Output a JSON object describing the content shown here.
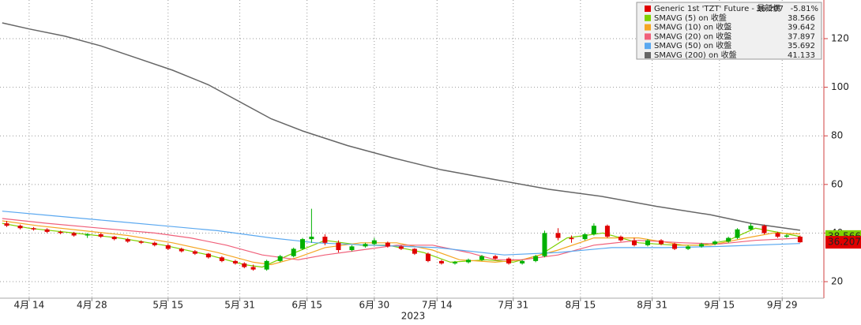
{
  "chart_data": {
    "type": "candlestick",
    "candles": {
      "name": "Generic 1st 'TZT' Future - 最新價",
      "last_value": "36.207",
      "change": "-5.81%",
      "up_color": "#00b000",
      "down_color": "#e00000",
      "x": [
        99,
        102,
        105,
        108,
        111,
        114,
        117,
        120,
        123,
        126,
        129,
        132,
        135,
        138,
        141,
        144,
        147,
        150,
        152,
        154,
        157,
        160,
        163,
        165,
        167,
        170,
        173,
        176,
        179,
        181,
        184,
        187,
        190,
        193,
        196,
        199,
        202,
        205,
        208,
        211,
        214,
        217,
        219,
        222,
        225,
        228,
        230,
        233,
        236,
        239,
        242,
        245,
        248,
        251,
        254,
        257,
        260,
        262,
        265,
        268,
        271,
        273,
        276
      ],
      "open": [
        44,
        43,
        42,
        41.5,
        40.5,
        40,
        39,
        39.5,
        38.5,
        37.5,
        36.5,
        36,
        35,
        33.5,
        32.5,
        31.5,
        30,
        28.5,
        27.5,
        26,
        25,
        28.5,
        30.5,
        33.5,
        37.5,
        38.5,
        36,
        33,
        34.5,
        35.5,
        36,
        34.5,
        33.5,
        31.5,
        28.5,
        27.5,
        28,
        29,
        30.5,
        29.5,
        27.5,
        28.5,
        30.5,
        40,
        38,
        37.5,
        39.5,
        43,
        38.5,
        37,
        35,
        37,
        35.5,
        33.5,
        34.5,
        35.5,
        36.5,
        38,
        41.5,
        43,
        40,
        38.5,
        38.5
      ],
      "high": [
        45,
        43.5,
        42.5,
        42,
        41,
        40.5,
        40,
        40,
        38.8,
        38,
        37,
        36.5,
        35.5,
        34,
        33,
        31.8,
        30.5,
        29,
        28,
        27,
        29,
        31,
        34,
        38,
        50,
        39.5,
        37,
        35,
        36,
        38,
        36.5,
        35,
        33.8,
        32,
        29,
        28.5,
        29.5,
        31,
        31,
        30,
        29,
        31,
        41,
        42,
        39,
        40,
        44,
        43.5,
        39,
        38,
        37.5,
        37.5,
        36,
        35,
        36,
        37,
        38.5,
        42,
        44,
        43.5,
        40.5,
        39.5,
        39
      ],
      "low": [
        42.5,
        41.5,
        41,
        40,
        39.5,
        38.5,
        38,
        38,
        37,
        36,
        35.5,
        34.5,
        33,
        32,
        31,
        29.5,
        28,
        27,
        25.5,
        24.5,
        24.5,
        28,
        30,
        33,
        36,
        35,
        32,
        32.5,
        34,
        35,
        34,
        33,
        31,
        28,
        27,
        27,
        27.5,
        28.5,
        29,
        27,
        27,
        28,
        30,
        37,
        36,
        37,
        39,
        38,
        36.5,
        34.5,
        34.5,
        35,
        33,
        33,
        34,
        35,
        36,
        37.5,
        41,
        39.5,
        38,
        38,
        36
      ],
      "close": [
        43,
        42,
        41.5,
        40.5,
        40,
        39,
        39.5,
        38.5,
        37.5,
        36.5,
        36,
        35,
        33.5,
        32.5,
        31.5,
        30,
        28.5,
        27.5,
        26,
        25,
        28.5,
        30.5,
        33.5,
        37.5,
        38.5,
        36,
        33,
        34.5,
        35.5,
        37,
        34.5,
        33.5,
        31.5,
        28.5,
        27.5,
        28,
        29,
        30.5,
        29.5,
        27.5,
        28.5,
        30.5,
        40,
        38,
        37.5,
        39.5,
        43,
        38.5,
        37,
        35,
        37,
        35.5,
        33.5,
        34.5,
        35.5,
        36.5,
        38,
        41.5,
        43,
        40,
        38.5,
        39,
        36.207
      ]
    },
    "series": [
      {
        "name": "SMAVG (5)  on 收盤",
        "color": "#7fd100",
        "last_value": "38.566",
        "x": [
          98,
          104,
          114,
          124,
          134,
          144,
          152,
          156,
          162,
          170,
          178,
          184,
          192,
          198,
          206,
          212,
          218,
          224,
          232,
          240,
          248,
          254,
          260,
          266,
          272,
          276
        ],
        "values": [
          44,
          42,
          40,
          38,
          35,
          31,
          27,
          26,
          31,
          37,
          35,
          35,
          32,
          28,
          29,
          28,
          31,
          38,
          40,
          36,
          35,
          35,
          37,
          42,
          40,
          38.566
        ]
      },
      {
        "name": "SMAVG (10)  on 收盤",
        "color": "#f5a623",
        "last_value": "39.642",
        "x": [
          98,
          106,
          116,
          126,
          136,
          146,
          154,
          158,
          164,
          170,
          178,
          186,
          194,
          200,
          208,
          214,
          222,
          230,
          240,
          250,
          256,
          264,
          270,
          276
        ],
        "values": [
          45,
          43,
          41,
          39,
          36,
          32,
          28,
          27,
          30,
          34,
          36,
          36,
          33,
          29,
          28,
          29,
          33,
          38,
          38,
          35,
          35,
          38,
          40,
          39.642
        ]
      },
      {
        "name": "SMAVG (20)  on 收盤",
        "color": "#f0607a",
        "last_value": "37.897",
        "x": [
          98,
          108,
          120,
          132,
          140,
          148,
          156,
          164,
          170,
          178,
          186,
          194,
          202,
          208,
          214,
          222,
          230,
          240,
          250,
          258,
          266,
          276
        ],
        "values": [
          46,
          44,
          42,
          40,
          38,
          35,
          31,
          29,
          31,
          33,
          35,
          35,
          32,
          29,
          29,
          31,
          35,
          37,
          36,
          35.5,
          37,
          37.897
        ]
      },
      {
        "name": "SMAVG (50)  on 收盤",
        "color": "#5aa8f0",
        "last_value": "35.692",
        "x": [
          98,
          110,
          122,
          134,
          146,
          158,
          168,
          180,
          195,
          210,
          222,
          234,
          246,
          258,
          276
        ],
        "values": [
          49,
          47,
          45,
          43,
          41,
          38,
          36,
          35,
          34,
          31,
          32,
          34,
          34,
          34.5,
          35.692
        ]
      },
      {
        "name": "SMAVG (200)  on 收盤",
        "color": "#666666",
        "last_value": "41.133",
        "x": [
          98,
          104,
          112,
          120,
          128,
          136,
          144,
          150,
          158,
          165,
          175,
          185,
          196,
          208,
          220,
          232,
          244,
          256,
          265,
          276
        ],
        "values": [
          126.5,
          124,
          121,
          117,
          112,
          107,
          101,
          95,
          87,
          82,
          76,
          71,
          66,
          62,
          58,
          55,
          51,
          47.5,
          44,
          41.133
        ]
      }
    ],
    "xlim": [
      97.5,
      281.3
    ],
    "ylim": [
      13.2,
      135.9
    ],
    "xticks": [
      {
        "value": 104,
        "label": "4月 14"
      },
      {
        "value": 118,
        "label": "4月 28"
      },
      {
        "value": 135,
        "label": "5月 15"
      },
      {
        "value": 151,
        "label": "5月 31"
      },
      {
        "value": 166,
        "label": "6月 15"
      },
      {
        "value": 181,
        "label": "6月 30"
      },
      {
        "value": 195,
        "label": "7月 14"
      },
      {
        "value": 212,
        "label": "7月 31"
      },
      {
        "value": 227,
        "label": "8月 15"
      },
      {
        "value": 243,
        "label": "8月 31"
      },
      {
        "value": 258,
        "label": "9月 15"
      },
      {
        "value": 272,
        "label": "9月 29"
      }
    ],
    "x_label": "2023",
    "yticks": [
      20,
      40,
      60,
      80,
      100,
      120
    ],
    "grid": true
  }
}
